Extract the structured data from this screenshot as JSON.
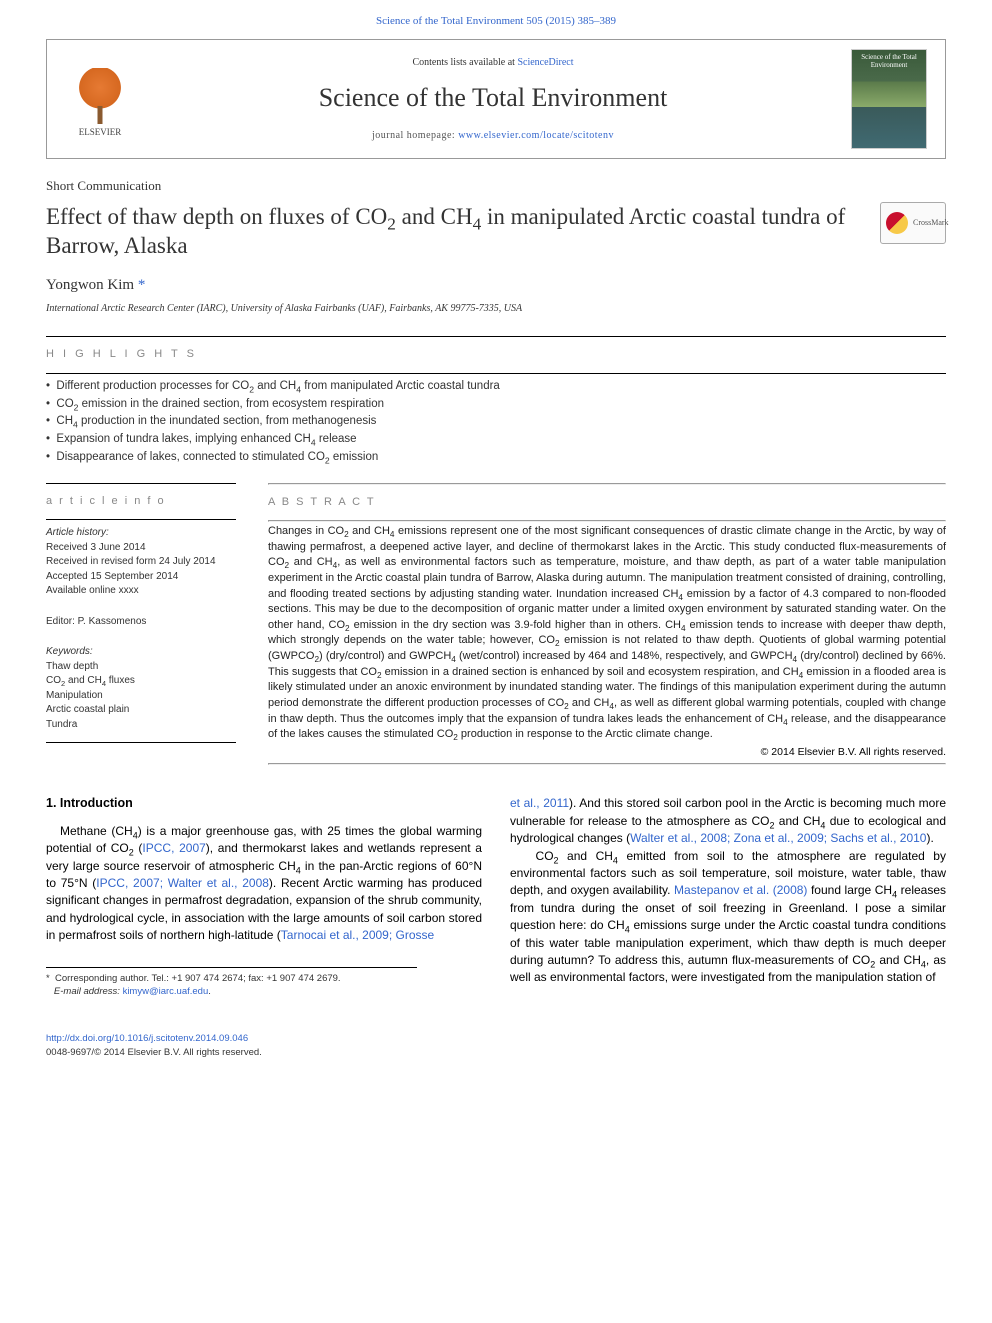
{
  "top_link": "Science of the Total Environment 505 (2015) 385–389",
  "header": {
    "contents_prefix": "Contents lists available at ",
    "contents_link": "ScienceDirect",
    "journal_title": "Science of the Total Environment",
    "homepage_label": "journal homepage: ",
    "homepage_url": "www.elsevier.com/locate/scitotenv",
    "elsevier": "ELSEVIER",
    "crossmark": "CrossMark"
  },
  "article": {
    "type": "Short Communication",
    "title_html": "Effect of thaw depth on fluxes of CO<sub>2</sub> and CH<sub>4</sub> in manipulated Arctic coastal tundra of Barrow, Alaska",
    "author": "Yongwon Kim",
    "affiliation": "International Arctic Research Center (IARC), University of Alaska Fairbanks (UAF), Fairbanks, AK 99775-7335, USA"
  },
  "highlights": {
    "label": "H I G H L I G H T S",
    "items_html": [
      "Different production processes for CO<sub>2</sub> and CH<sub>4</sub> from manipulated Arctic coastal tundra",
      "CO<sub>2</sub> emission in the drained section, from ecosystem respiration",
      "CH<sub>4</sub> production in the inundated section, from methanogenesis",
      "Expansion of tundra lakes, implying enhanced CH<sub>4</sub> release",
      "Disappearance of lakes, connected to stimulated CO<sub>2</sub> emission"
    ]
  },
  "info": {
    "label": "a r t i c l e   i n f o",
    "history_title": "Article history:",
    "history": [
      "Received 3 June 2014",
      "Received in revised form 24 July 2014",
      "Accepted 15 September 2014",
      "Available online xxxx"
    ],
    "editor": "Editor: P. Kassomenos",
    "keywords_title": "Keywords:",
    "keywords_html": [
      "Thaw depth",
      "CO<sub>2</sub> and CH<sub>4</sub> fluxes",
      "Manipulation",
      "Arctic coastal plain",
      "Tundra"
    ]
  },
  "abstract": {
    "label": "A B S T R A C T",
    "text_html": "Changes in CO<sub>2</sub> and CH<sub>4</sub> emissions represent one of the most significant consequences of drastic climate change in the Arctic, by way of thawing permafrost, a deepened active layer, and decline of thermokarst lakes in the Arctic. This study conducted flux-measurements of CO<sub>2</sub> and CH<sub>4</sub>, as well as environmental factors such as temperature, moisture, and thaw depth, as part of a water table manipulation experiment in the Arctic coastal plain tundra of Barrow, Alaska during autumn. The manipulation treatment consisted of draining, controlling, and flooding treated sections by adjusting standing water. Inundation increased CH<sub>4</sub> emission by a factor of 4.3 compared to non-flooded sections. This may be due to the decomposition of organic matter under a limited oxygen environment by saturated standing water. On the other hand, CO<sub>2</sub> emission in the dry section was 3.9-fold higher than in others. CH<sub>4</sub> emission tends to increase with deeper thaw depth, which strongly depends on the water table; however, CO<sub>2</sub> emission is not related to thaw depth. Quotients of global warming potential (GWPCO<sub>2</sub>) (dry/control) and GWPCH<sub>4</sub> (wet/control) increased by 464 and 148%, respectively, and GWPCH<sub>4</sub> (dry/control) declined by 66%. This suggests that CO<sub>2</sub> emission in a drained section is enhanced by soil and ecosystem respiration, and CH<sub>4</sub> emission in a flooded area is likely stimulated under an anoxic environment by inundated standing water. The findings of this manipulation experiment during the autumn period demonstrate the different production processes of CO<sub>2</sub> and CH<sub>4</sub>, as well as different global warming potentials, coupled with change in thaw depth. Thus the outcomes imply that the expansion of tundra lakes leads the enhancement of CH<sub>4</sub> release, and the disappearance of the lakes causes the stimulated CO<sub>2</sub> production in response to the Arctic climate change.",
    "copyright": "© 2014 Elsevier B.V. All rights reserved."
  },
  "body": {
    "intro_heading": "1. Introduction",
    "col1_html": "Methane (CH<sub>4</sub>) is a major greenhouse gas, with 25 times the global warming potential of CO<sub>2</sub> (<a class='ref' href='#'>IPCC, 2007</a>), and thermokarst lakes and wetlands represent a very large source reservoir of atmospheric CH<sub>4</sub> in the pan-Arctic regions of 60°N to 75°N (<a class='ref' href='#'>IPCC, 2007; Walter et al., 2008</a>). Recent Arctic warming has produced significant changes in permafrost degradation, expansion of the shrub community, and hydrological cycle, in association with the large amounts of soil carbon stored in permafrost soils of northern high-latitude (<a class='ref' href='#'>Tarnocai et al., 2009; Grosse</a>",
    "col2_html": "<a class='ref' href='#'>et al., 2011</a>). And this stored soil carbon pool in the Arctic is becoming much more vulnerable for release to the atmosphere as CO<sub>2</sub> and CH<sub>4</sub> due to ecological and hydrological changes (<a class='ref' href='#'>Walter et al., 2008; Zona et al., 2009; Sachs et al., 2010</a>).<br>&nbsp;&nbsp;&nbsp;CO<sub>2</sub> and CH<sub>4</sub> emitted from soil to the atmosphere are regulated by environmental factors such as soil temperature, soil moisture, water table, thaw depth, and oxygen availability. <a class='ref' href='#'>Mastepanov et al. (2008)</a> found large CH<sub>4</sub> releases from tundra during the onset of soil freezing in Greenland. I pose a similar question here: do CH<sub>4</sub> emissions surge under the Arctic coastal tundra conditions of this water table manipulation experiment, which thaw depth is much deeper during autumn? To address this, autumn flux-measurements of CO<sub>2</sub> and CH<sub>4</sub>, as well as environmental factors, were investigated from the manipulation station of"
  },
  "corr": {
    "star": "*",
    "line1": "Corresponding author. Tel.: +1 907 474 2674; fax: +1 907 474 2679.",
    "email_label": "E-mail address: ",
    "email": "kimyw@iarc.uaf.edu",
    "period": "."
  },
  "footer": {
    "doi": "http://dx.doi.org/10.1016/j.scitotenv.2014.09.046",
    "issn": "0048-9697/© 2014 Elsevier B.V. All rights reserved."
  },
  "colors": {
    "link": "#3366cc",
    "text": "#222222",
    "label_gray": "#888888"
  }
}
